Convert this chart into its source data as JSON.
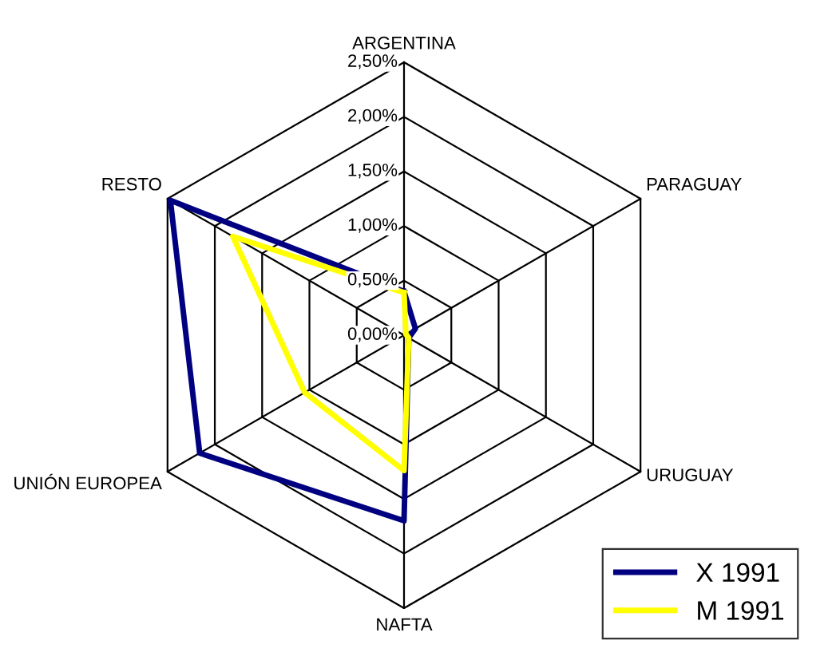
{
  "chart_data": {
    "type": "radar",
    "categories": [
      "ARGENTINA",
      "PARAGUAY",
      "URUGUAY",
      "NAFTA",
      "UNIÓN EUROPEA",
      "RESTO"
    ],
    "series": [
      {
        "name": "X 1991",
        "color": "#000080",
        "values": [
          0.4,
          0.12,
          0.05,
          1.7,
          2.16,
          2.47
        ]
      },
      {
        "name": "M 1991",
        "color": "#ffff00",
        "values": [
          0.39,
          0.02,
          0.05,
          1.24,
          1.05,
          1.81
        ]
      }
    ],
    "ylim": [
      0,
      2.5
    ],
    "yticks": [
      {
        "value": 0,
        "label": "0,00%"
      },
      {
        "value": 0.5,
        "label": "0,50%"
      },
      {
        "value": 1.0,
        "label": "1,00%"
      },
      {
        "value": 1.5,
        "label": "1,50%"
      },
      {
        "value": 2.0,
        "label": "2,00%"
      },
      {
        "value": 2.5,
        "label": "2,50%"
      }
    ],
    "grid": true,
    "legend": "bottom right",
    "marker": "none"
  }
}
